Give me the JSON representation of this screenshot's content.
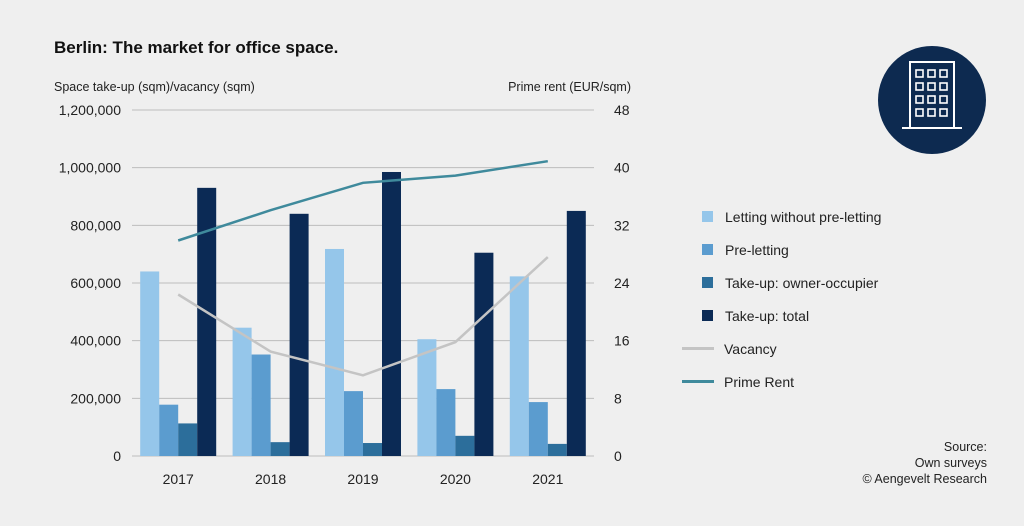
{
  "title": "Berlin: The market for office space.",
  "left_axis_title": "Space take-up (sqm)/vacancy (sqm)",
  "right_axis_title": "Prime rent (EUR/sqm)",
  "legend": [
    {
      "label": "Letting without pre-letting",
      "kind": "bar",
      "color": "#95c6ea"
    },
    {
      "label": "Pre-letting",
      "kind": "bar",
      "color": "#5b9ccf"
    },
    {
      "label": "Take-up: owner-occupier",
      "kind": "bar",
      "color": "#2c6e9b"
    },
    {
      "label": "Take-up: total",
      "kind": "bar",
      "color": "#0b2a55"
    },
    {
      "label": "Vacancy",
      "kind": "line",
      "color": "#c4c4c4"
    },
    {
      "label": "Prime Rent",
      "kind": "line",
      "color": "#3f8a9c"
    }
  ],
  "source": {
    "line1": "Source:",
    "line2": "Own surveys",
    "line3": "© Aengevelt Research"
  },
  "logo": {
    "icon": "office-building-icon",
    "bg_color": "#0d2a50"
  },
  "chart_data": {
    "type": "bar",
    "categories": [
      "2017",
      "2018",
      "2019",
      "2020",
      "2021"
    ],
    "y_left": {
      "min": 0,
      "max": 1200000,
      "ticks": [
        "0",
        "200,000",
        "400,000",
        "600,000",
        "800,000",
        "1,000,000",
        "1,200,000"
      ]
    },
    "y_right": {
      "min": 0,
      "max": 48,
      "ticks": [
        "0",
        "8",
        "16",
        "24",
        "32",
        "40",
        "48"
      ]
    },
    "grid": true,
    "legend_position": "right",
    "bar_series": [
      {
        "name": "Letting without pre-letting",
        "color": "#95c6ea",
        "values": [
          640000,
          445000,
          718000,
          405000,
          623000
        ]
      },
      {
        "name": "Pre-letting",
        "color": "#5b9ccf",
        "values": [
          178000,
          352000,
          225000,
          232000,
          187000
        ]
      },
      {
        "name": "Take-up: owner-occupier",
        "color": "#2c6e9b",
        "values": [
          113000,
          48000,
          45000,
          70000,
          42000
        ]
      },
      {
        "name": "Take-up: total",
        "color": "#0b2a55",
        "values": [
          930000,
          840000,
          985000,
          705000,
          850000
        ]
      }
    ],
    "line_series": [
      {
        "name": "Vacancy",
        "axis": "left",
        "color": "#c4c4c4",
        "values": [
          560000,
          362000,
          280000,
          395000,
          690000
        ]
      },
      {
        "name": "Prime Rent",
        "axis": "right",
        "color": "#3f8a9c",
        "values": [
          29.9,
          34.1,
          37.9,
          38.9,
          40.9
        ]
      }
    ]
  }
}
